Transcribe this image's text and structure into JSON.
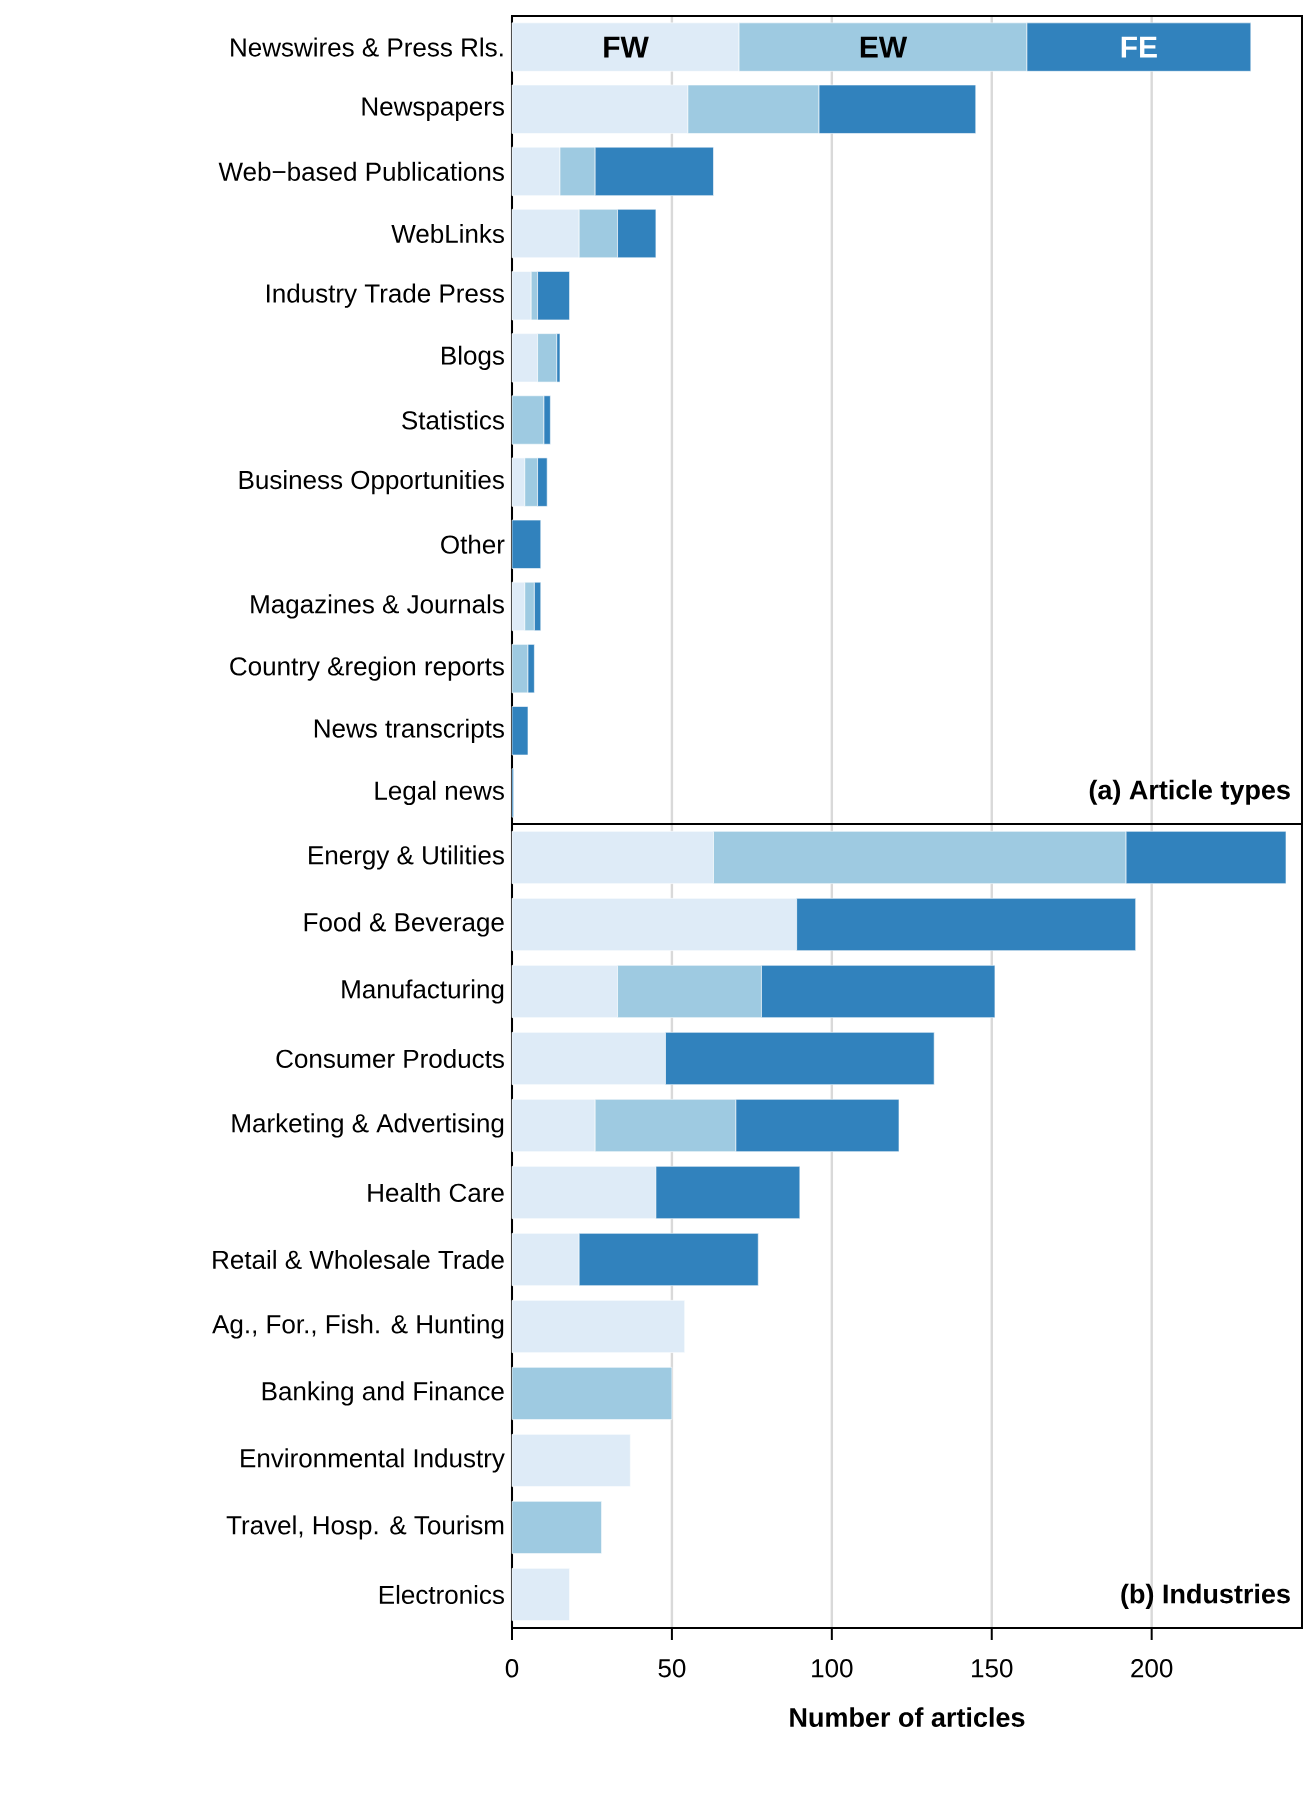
{
  "chart_data": [
    {
      "type": "bar",
      "orientation": "horizontal",
      "stacked": true,
      "title": "(a) Article types",
      "categories": [
        "Newswires & Press Rls.",
        "Newspapers",
        "Web−based Publications",
        "WebLinks",
        "Industry Trade Press",
        "Blogs",
        "Statistics",
        "Business Opportunities",
        "Other",
        "Magazines & Journals",
        "Country &region reports",
        "News transcripts",
        "Legal news"
      ],
      "series": [
        {
          "name": "FW",
          "color": "#deebf7",
          "values": [
            71,
            55,
            15,
            21,
            6,
            8,
            null,
            4,
            null,
            4,
            null,
            null,
            null
          ]
        },
        {
          "name": "EW",
          "color": "#9ecae1",
          "values": [
            90,
            41,
            11,
            12,
            2,
            6,
            10,
            4,
            null,
            3,
            5,
            null,
            null
          ]
        },
        {
          "name": "FE",
          "color": "#3182bd",
          "values": [
            70,
            49,
            37,
            12,
            10,
            1,
            2,
            3,
            9,
            2,
            2,
            5,
            0.5
          ]
        }
      ],
      "xlim": [
        0,
        247
      ],
      "xticks": [
        0,
        50,
        100,
        150,
        200
      ],
      "grid": "x",
      "tick_labels": "y"
    },
    {
      "type": "bar",
      "orientation": "horizontal",
      "stacked": true,
      "title": "(b) Industries",
      "xlabel": "Number of articles",
      "categories": [
        "Energy & Utilities",
        "Food & Beverage",
        "Manufacturing",
        "Consumer Products",
        "Marketing & Advertising",
        "Health Care",
        "Retail & Wholesale Trade",
        "Ag., For., Fish. & Hunting",
        "Banking and Finance",
        "Environmental Industry",
        "Travel, Hosp. & Tourism",
        "Electronics"
      ],
      "series": [
        {
          "color": "#deebf7",
          "values": [
            63,
            89,
            33,
            48,
            26,
            45,
            21,
            54,
            null,
            37,
            null,
            18
          ]
        },
        {
          "color": "#9ecae1",
          "values": [
            129,
            null,
            45,
            null,
            44,
            null,
            null,
            null,
            50,
            null,
            28,
            null
          ]
        },
        {
          "color": "#3182bd",
          "values": [
            50,
            106,
            73,
            84,
            51,
            45,
            56,
            null,
            null,
            null,
            null,
            null
          ]
        }
      ],
      "xlim": [
        0,
        247
      ],
      "xticks": [
        0,
        50,
        100,
        150,
        200
      ],
      "grid": "x"
    }
  ]
}
